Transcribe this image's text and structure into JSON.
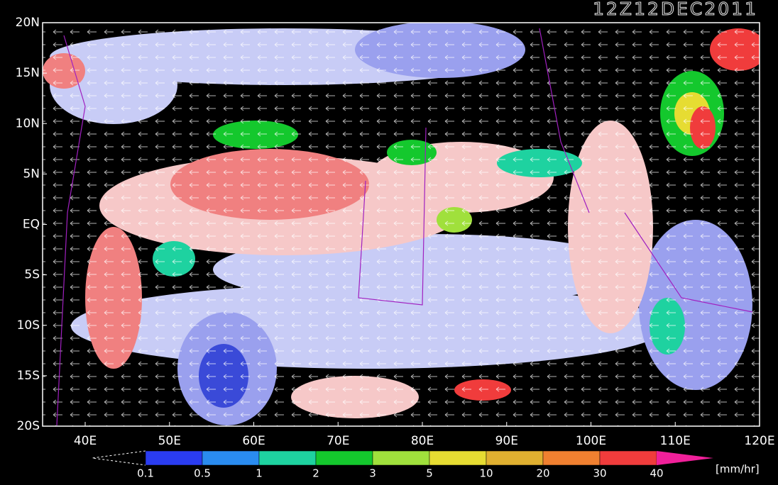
{
  "title": "12Z12DEC2011",
  "lat_labels": [
    "20N",
    "15N",
    "10N",
    "5N",
    "EQ",
    "5S",
    "10S",
    "15S",
    "20S"
  ],
  "lon_labels": [
    "40E",
    "50E",
    "60E",
    "70E",
    "80E",
    "90E",
    "100E",
    "110E",
    "120E"
  ],
  "colorbar": {
    "labels": [
      "0.1",
      "0.5",
      "1",
      "2",
      "3",
      "5",
      "10",
      "20",
      "30",
      "40"
    ],
    "colors": [
      "#2a3cf0",
      "#2a8cf0",
      "#1ed2a0",
      "#14c82d",
      "#a0e03c",
      "#e6dc32",
      "#e0b030",
      "#f08030",
      "#f03c3c",
      "#f0209a"
    ],
    "unit": "[mm/hr]"
  }
}
